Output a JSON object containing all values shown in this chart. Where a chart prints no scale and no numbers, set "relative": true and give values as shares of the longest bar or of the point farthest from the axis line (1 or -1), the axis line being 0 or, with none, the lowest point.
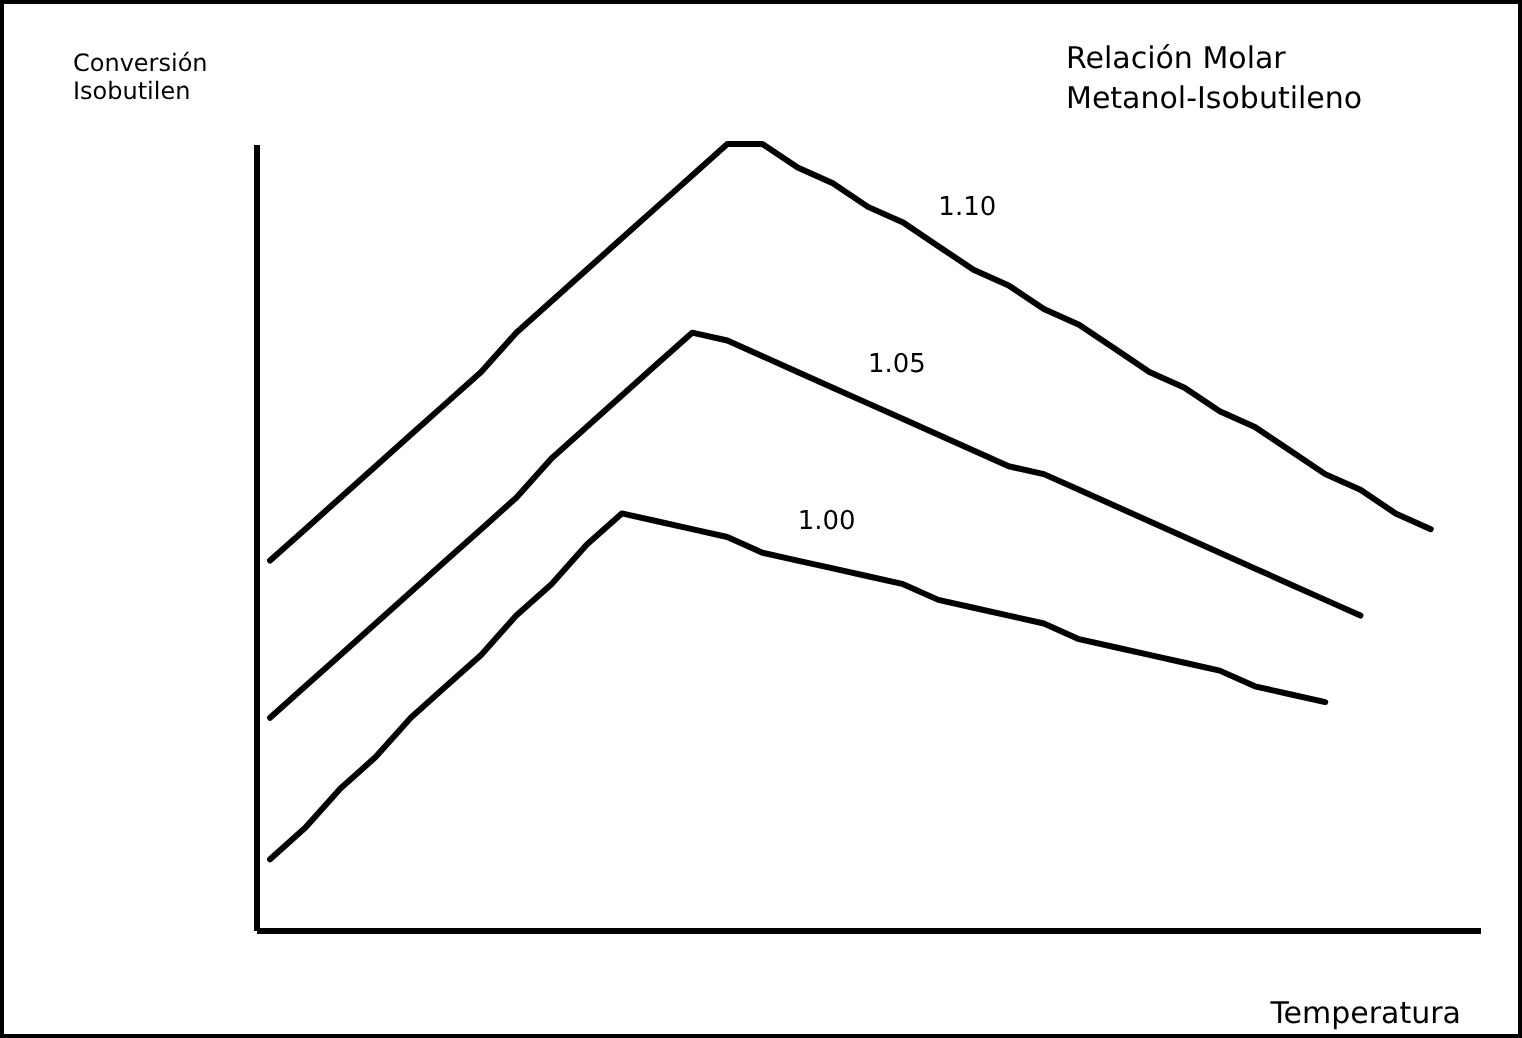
{
  "chart_data": {
    "type": "line",
    "relative": true,
    "xlabel": "Temperatura",
    "ylabel": "Conversión\nIsobutilen",
    "legend_title": "Relación Molar\nMetanol-Isobutileno",
    "marker": "none",
    "line_style": "solid",
    "grid": false,
    "categories": [
      null,
      null,
      null,
      null,
      null,
      null,
      null,
      null,
      null,
      null,
      null,
      null,
      null,
      null,
      null,
      null,
      null,
      null,
      null,
      null,
      null,
      null,
      null,
      null,
      null,
      null,
      null,
      null,
      null,
      null,
      null,
      null,
      null,
      null,
      null
    ],
    "series": [
      {
        "name": "1.10",
        "color": "#000000",
        "values": [
          0.47,
          0.51,
          0.55,
          0.59,
          0.63,
          0.67,
          0.71,
          0.76,
          0.8,
          0.84,
          0.88,
          0.92,
          0.96,
          1.0,
          1.0,
          0.97,
          0.95,
          0.92,
          0.9,
          0.87,
          0.84,
          0.82,
          0.79,
          0.77,
          0.74,
          0.71,
          0.69,
          0.66,
          0.64,
          0.61,
          0.58,
          0.56,
          0.53,
          0.51,
          null
        ]
      },
      {
        "name": "1.05",
        "color": "#000000",
        "values": [
          0.27,
          0.31,
          0.35,
          0.39,
          0.43,
          0.47,
          0.51,
          0.55,
          0.6,
          0.64,
          0.68,
          0.72,
          0.76,
          0.75,
          0.73,
          0.71,
          0.69,
          0.67,
          0.65,
          0.63,
          0.61,
          0.59,
          0.58,
          0.56,
          0.54,
          0.52,
          0.5,
          0.48,
          0.46,
          0.44,
          0.42,
          0.4,
          null,
          null,
          null
        ]
      },
      {
        "name": "1.00",
        "color": "#000000",
        "values": [
          0.09,
          0.13,
          0.18,
          0.22,
          0.27,
          0.31,
          0.35,
          0.4,
          0.44,
          0.49,
          0.53,
          0.52,
          0.51,
          0.5,
          0.48,
          0.47,
          0.46,
          0.45,
          0.44,
          0.42,
          0.41,
          0.4,
          0.39,
          0.37,
          0.36,
          0.35,
          0.34,
          0.33,
          0.31,
          0.3,
          0.29,
          null,
          null,
          null,
          null
        ]
      }
    ]
  }
}
